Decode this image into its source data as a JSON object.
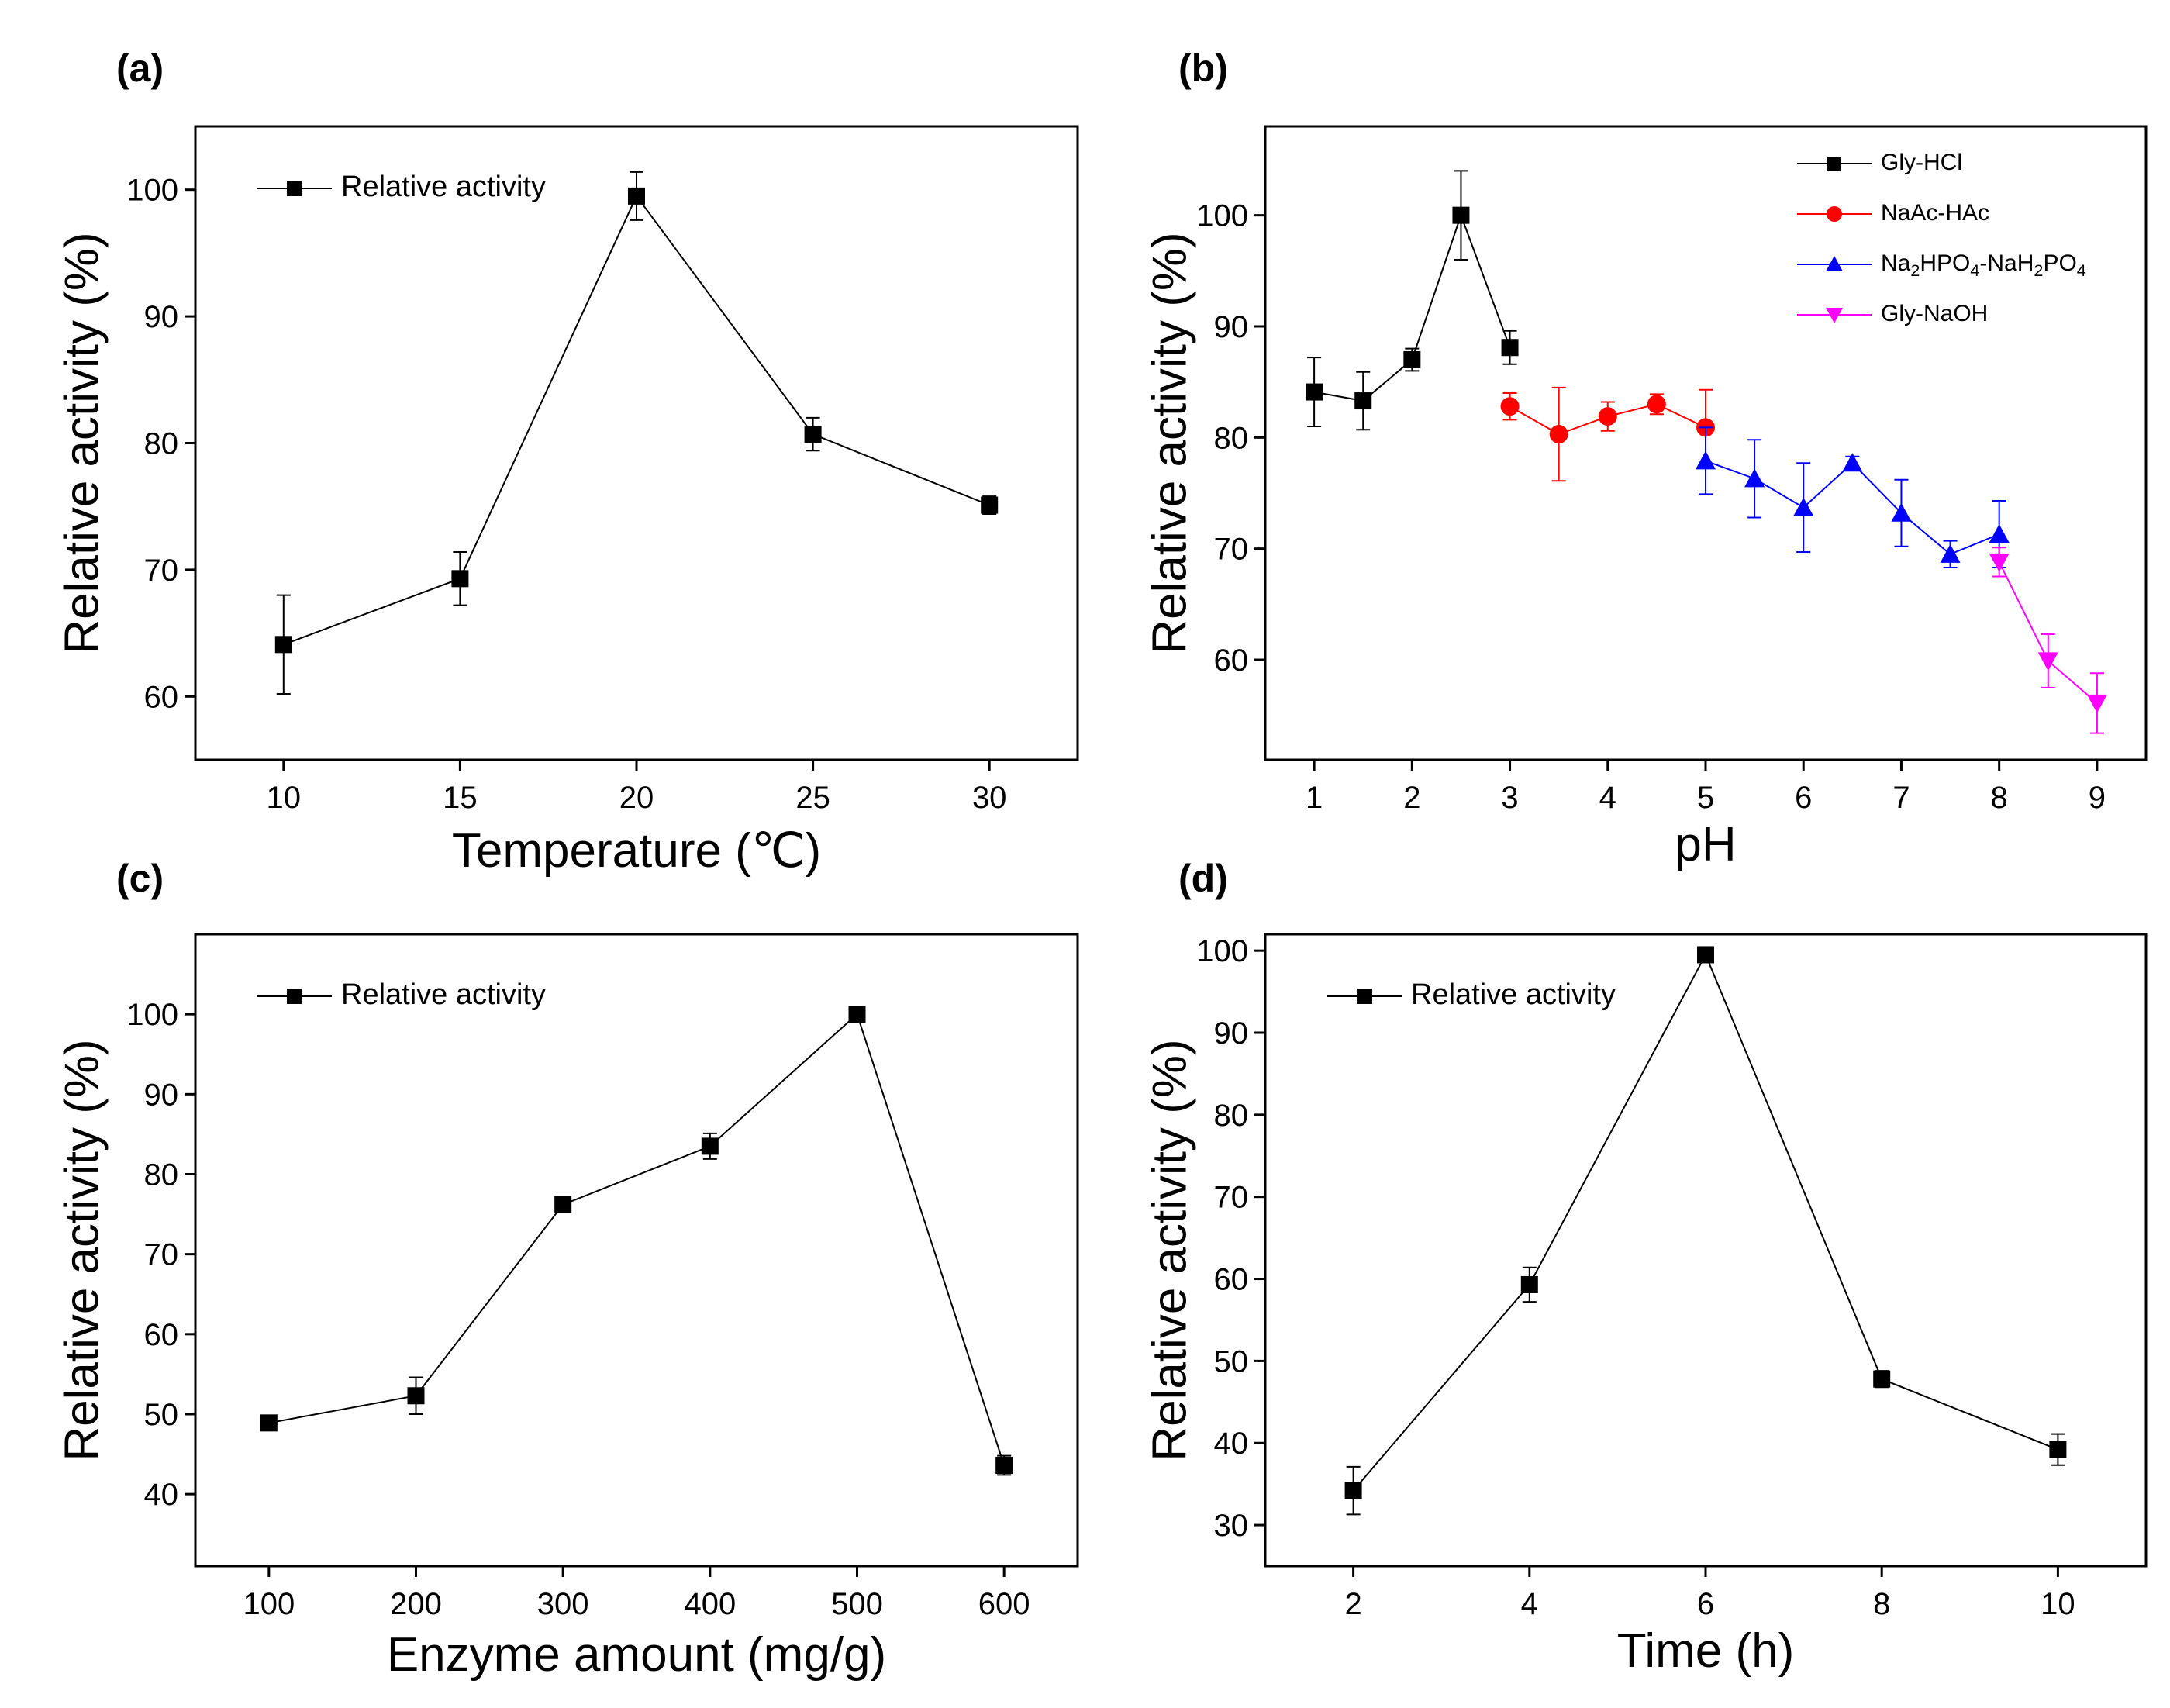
{
  "figure": {
    "panels": [
      "(a)",
      "(b)",
      "(c)",
      "(d)"
    ]
  },
  "chart_data": [
    {
      "id": "a",
      "type": "line",
      "panel_label": "(a)",
      "xlabel": "Temperature (℃)",
      "ylabel": "Relative activity (%)",
      "xlim": [
        7.5,
        32.5
      ],
      "ylim": [
        55,
        105
      ],
      "xticks": [
        10,
        15,
        20,
        25,
        30
      ],
      "yticks": [
        60,
        70,
        80,
        90,
        100
      ],
      "legend_position": "top-left",
      "series": [
        {
          "name": "Relative activity",
          "color": "#000000",
          "marker": "square",
          "x": [
            10,
            15,
            20,
            25,
            30
          ],
          "values": [
            64.1,
            69.3,
            99.5,
            80.7,
            75.1
          ],
          "errors": [
            3.9,
            2.1,
            1.9,
            1.3,
            0.7
          ]
        }
      ]
    },
    {
      "id": "b",
      "type": "line",
      "panel_label": "(b)",
      "xlabel": "pH",
      "ylabel": "Relative activity (%)",
      "xlim": [
        0.5,
        9.5
      ],
      "ylim": [
        51,
        108
      ],
      "xticks": [
        1,
        2,
        3,
        4,
        5,
        6,
        7,
        8,
        9
      ],
      "yticks": [
        60,
        70,
        80,
        90,
        100
      ],
      "legend_position": "top-right",
      "series": [
        {
          "name": "Gly-HCl",
          "color": "#000000",
          "marker": "square",
          "x": [
            1,
            1.5,
            2,
            2.5,
            3
          ],
          "values": [
            84.1,
            83.3,
            87.0,
            100.0,
            88.1
          ],
          "errors": [
            3.1,
            2.6,
            1.0,
            4.0,
            1.5
          ]
        },
        {
          "name": "NaAc-HAc",
          "color": "#ff0000",
          "marker": "circle",
          "x": [
            3,
            3.5,
            4,
            4.5,
            5
          ],
          "values": [
            82.8,
            80.3,
            81.9,
            83.0,
            80.9
          ],
          "errors": [
            1.2,
            4.2,
            1.3,
            0.9,
            3.4
          ]
        },
        {
          "name": "Na2HPO4-NaH2PO4",
          "color": "#0000ff",
          "marker": "triangle-up",
          "x": [
            5,
            5.5,
            6,
            6.5,
            7,
            7.5,
            8
          ],
          "values": [
            77.9,
            76.3,
            73.7,
            77.7,
            73.2,
            69.5,
            71.3
          ],
          "errors": [
            3.0,
            3.5,
            4.0,
            0.6,
            3.0,
            1.2,
            3.0
          ]
        },
        {
          "name": "Gly-NaOH",
          "color": "#ff00ff",
          "marker": "triangle-down",
          "x": [
            8,
            8.5,
            9
          ],
          "values": [
            68.8,
            59.9,
            56.1
          ],
          "errors": [
            1.3,
            2.4,
            2.7
          ]
        }
      ]
    },
    {
      "id": "c",
      "type": "line",
      "panel_label": "(c)",
      "xlabel": "Enzyme amount (mg/g)",
      "ylabel": "Relative activity (%)",
      "xlim": [
        50,
        650
      ],
      "ylim": [
        31,
        110
      ],
      "xticks": [
        100,
        200,
        300,
        400,
        500,
        600
      ],
      "yticks": [
        40,
        50,
        60,
        70,
        80,
        90,
        100
      ],
      "legend_position": "top-left",
      "series": [
        {
          "name": "Relative activity",
          "color": "#000000",
          "marker": "square",
          "x": [
            100,
            200,
            300,
            400,
            500,
            600
          ],
          "values": [
            48.9,
            52.3,
            76.2,
            83.5,
            100.0,
            43.6
          ],
          "errors": [
            0.6,
            2.3,
            0.7,
            1.6,
            0.6,
            1.2
          ]
        }
      ]
    },
    {
      "id": "d",
      "type": "line",
      "panel_label": "(d)",
      "xlabel": "Time (h)",
      "ylabel": "Relative activity (%)",
      "xlim": [
        1,
        11
      ],
      "ylim": [
        25,
        102
      ],
      "xticks": [
        2,
        4,
        6,
        8,
        10
      ],
      "yticks": [
        30,
        40,
        50,
        60,
        70,
        80,
        90,
        100
      ],
      "legend_position": "top-left",
      "series": [
        {
          "name": "Relative activity",
          "color": "#000000",
          "marker": "square",
          "x": [
            2,
            4,
            6,
            8,
            10
          ],
          "values": [
            34.2,
            59.3,
            99.5,
            47.8,
            39.2
          ],
          "errors": [
            2.9,
            2.1,
            0.5,
            1.0,
            1.9
          ]
        }
      ]
    }
  ]
}
